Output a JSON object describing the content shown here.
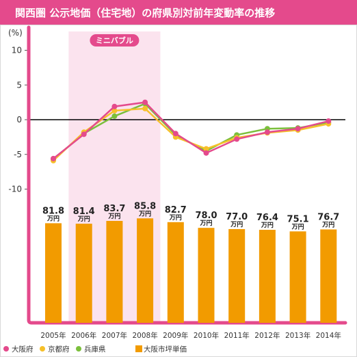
{
  "title": "関西圏 公示地価（住宅地）の府県別対前年変動率の推移",
  "chart_data": [
    {
      "type": "line",
      "unit_label": "(%)",
      "x": [
        "2005年",
        "2006年",
        "2007年",
        "2008年",
        "2009年",
        "2010年",
        "2011年",
        "2012年",
        "2013年",
        "2014年"
      ],
      "ylim": [
        -10,
        10
      ],
      "yticks": [
        "10",
        "5",
        "0",
        "-5",
        "-10"
      ],
      "highlight_band": {
        "label": "ミニバブル",
        "from": "2006年",
        "to": "2008年"
      },
      "series": [
        {
          "name": "大阪府",
          "color": "#e44a8c",
          "values": [
            -5.6,
            -2.1,
            1.9,
            2.5,
            -2.0,
            -4.8,
            -2.8,
            -1.8,
            -1.3,
            -0.2
          ]
        },
        {
          "name": "京都府",
          "color": "#f6c02a",
          "values": [
            -5.9,
            -1.8,
            1.3,
            1.6,
            -2.5,
            -4.2,
            -2.6,
            -1.9,
            -1.5,
            -0.6
          ]
        },
        {
          "name": "兵庫県",
          "color": "#7bbf3c",
          "values": [
            -5.7,
            -2.0,
            0.5,
            2.3,
            -2.2,
            -4.5,
            -2.2,
            -1.3,
            -1.2,
            -0.4
          ]
        }
      ]
    },
    {
      "type": "bar",
      "name": "大阪市坪単価",
      "color": "#f29b00",
      "categories": [
        "2005年",
        "2006年",
        "2007年",
        "2008年",
        "2009年",
        "2010年",
        "2011年",
        "2012年",
        "2013年",
        "2014年"
      ],
      "values": [
        81.8,
        81.4,
        83.7,
        85.8,
        82.7,
        78.0,
        77.0,
        76.4,
        75.1,
        76.7
      ],
      "value_labels": [
        "81.8",
        "81.4",
        "83.7",
        "85.8",
        "82.7",
        "78.0",
        "77.0",
        "76.4",
        "75.1",
        "76.7"
      ],
      "unit": "万円"
    }
  ],
  "legend": [
    {
      "label": "大阪府",
      "color": "#e44a8c",
      "marker": "dot"
    },
    {
      "label": "京都府",
      "color": "#f6c02a",
      "marker": "dot"
    },
    {
      "label": "兵庫県",
      "color": "#7bbf3c",
      "marker": "dot"
    },
    {
      "label": "大阪市坪単価",
      "color": "#f29b00",
      "marker": "square"
    }
  ],
  "colors": {
    "accent": "#e44a8c",
    "band": "#fbe3ee",
    "axis": "#e44a8c",
    "zero_line": "#000000"
  }
}
